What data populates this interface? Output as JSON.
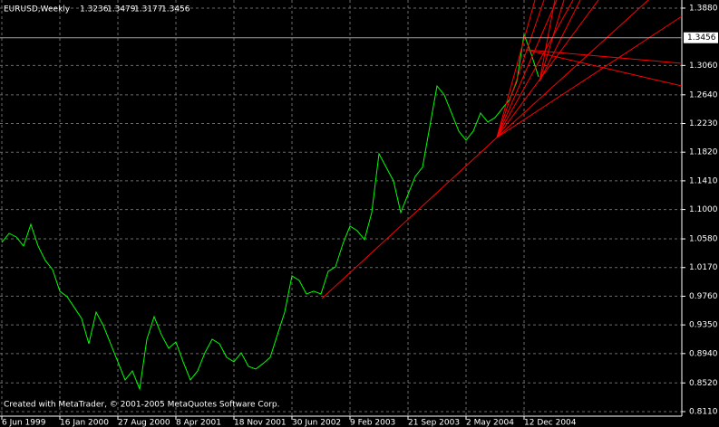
{
  "chart_data": {
    "type": "line",
    "title": "EURUSD,Weekly",
    "ohlc": [
      "1.3236",
      "1.3479",
      "1.3177",
      "1.3456"
    ],
    "footer": "Created with MetaTrader, © 2001-2005 MetaQuotes Software Corp.",
    "last_price": {
      "value": 1.3456,
      "label": "1.3456"
    },
    "categories": [
      "6 Jun 1999",
      null,
      null,
      null,
      null,
      null,
      null,
      null,
      "16 Jan 2000",
      null,
      null,
      null,
      null,
      null,
      null,
      null,
      "27 Aug 2000",
      null,
      null,
      null,
      null,
      null,
      null,
      null,
      "8 Apr 2001",
      null,
      null,
      null,
      null,
      null,
      null,
      null,
      "18 Nov 2001",
      null,
      null,
      null,
      null,
      null,
      null,
      null,
      "30 Jun 2002",
      null,
      null,
      null,
      null,
      null,
      null,
      null,
      "9 Feb 2003",
      null,
      null,
      null,
      null,
      null,
      null,
      null,
      "21 Sep 2003",
      null,
      null,
      null,
      null,
      null,
      null,
      null,
      "2 May 2004",
      null,
      null,
      null,
      null,
      null,
      null,
      null,
      "12 Dec 2004",
      null,
      null
    ],
    "series": [
      {
        "name": "EURUSD",
        "color": "#00ff00",
        "values": [
          1.0529,
          1.0659,
          1.0607,
          1.0478,
          1.0788,
          1.0478,
          1.0271,
          1.0141,
          0.9831,
          0.9753,
          0.9598,
          0.9443,
          0.908,
          0.9533,
          0.9339,
          0.908,
          0.8822,
          0.8563,
          0.8692,
          0.8434,
          0.9145,
          0.9469,
          0.921,
          0.9016,
          0.9106,
          0.8822,
          0.8563,
          0.8692,
          0.8951,
          0.9145,
          0.908,
          0.8886,
          0.8822,
          0.8951,
          0.8757,
          0.8718,
          0.8796,
          0.8886,
          0.921,
          0.9533,
          1.0051,
          0.9986,
          0.9792,
          0.9831,
          0.9792,
          1.0115,
          1.018,
          1.0503,
          1.0762,
          1.0697,
          1.0568,
          1.0956,
          1.1797,
          1.1603,
          1.1409,
          1.0956,
          1.1215,
          1.1474,
          1.1603,
          1.2185,
          1.2767,
          1.2638,
          1.2379,
          1.2121,
          1.1991,
          1.2121,
          1.2379,
          1.225,
          1.2315,
          1.2444,
          1.2573,
          1.2832,
          1.3505,
          1.322,
          1.2897
        ]
      }
    ],
    "ylim": [
      0.8045,
      1.3996
    ],
    "yticks": [
      {
        "value": 0.811,
        "label": "0.8110"
      },
      {
        "value": 0.852,
        "label": "0.8520"
      },
      {
        "value": 0.894,
        "label": "0.8940"
      },
      {
        "value": 0.935,
        "label": "0.9350"
      },
      {
        "value": 0.976,
        "label": "0.9760"
      },
      {
        "value": 1.017,
        "label": "1.0170"
      },
      {
        "value": 1.058,
        "label": "1.0580"
      },
      {
        "value": 1.1,
        "label": "1.1000"
      },
      {
        "value": 1.141,
        "label": "1.1410"
      },
      {
        "value": 1.182,
        "label": "1.1820"
      },
      {
        "value": 1.223,
        "label": "1.2230"
      },
      {
        "value": 1.264,
        "label": "1.2640"
      },
      {
        "value": 1.306,
        "label": "1.3060"
      },
      {
        "value": 1.388,
        "label": "1.3880"
      }
    ],
    "grid": true
  }
}
